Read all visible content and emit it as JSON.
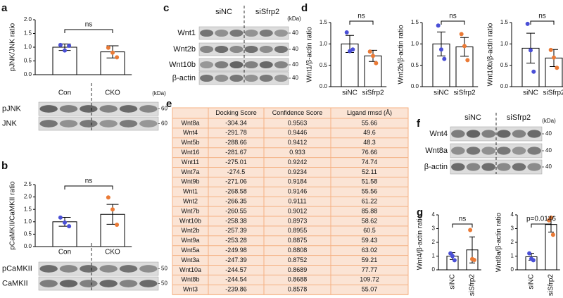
{
  "panel_labels": [
    "a",
    "b",
    "c",
    "d",
    "e",
    "f",
    "g"
  ],
  "chart_data": [
    {
      "type": "bar",
      "y_label": "pJNK/JNK ratio",
      "categories": [
        "Con",
        "CKO"
      ],
      "values": [
        1.0,
        0.83
      ],
      "errors": [
        0.12,
        0.22
      ],
      "points": [
        [
          1.08,
          0.88,
          1.05
        ],
        [
          0.98,
          0.8,
          0.63
        ]
      ],
      "colors": [
        "#4a4fd6",
        "#ea7a36"
      ],
      "annotation": "ns",
      "ylim": [
        0,
        2.0
      ],
      "yticks": [
        {
          "value": 0,
          "label": "0.0"
        },
        {
          "value": 0.5,
          "label": "0.5"
        },
        {
          "value": 1.0,
          "label": "1.0"
        },
        {
          "value": 1.5,
          "label": "1.5"
        },
        {
          "value": 2.0,
          "label": "2.0"
        }
      ]
    },
    {
      "type": "bar",
      "y_label": "pCaMKII/CaMKII ratio",
      "categories": [
        "Con",
        "CKO"
      ],
      "values": [
        1.0,
        1.3
      ],
      "errors": [
        0.18,
        0.4
      ],
      "points": [
        [
          1.17,
          0.97,
          0.82
        ],
        [
          1.98,
          1.5,
          0.88
        ]
      ],
      "colors": [
        "#4a4fd6",
        "#ea7a36"
      ],
      "annotation": "ns",
      "ylim": [
        0,
        2.5
      ],
      "yticks": [
        {
          "value": 0,
          "label": "0.0"
        },
        {
          "value": 0.5,
          "label": "0.5"
        },
        {
          "value": 1.0,
          "label": "1.0"
        },
        {
          "value": 1.5,
          "label": "1.5"
        },
        {
          "value": 2.0,
          "label": "2.0"
        },
        {
          "value": 2.5,
          "label": "2.5"
        }
      ]
    },
    {
      "type": "bar",
      "y_label": "Wnt1/β-actin ratio",
      "categories": [
        "siNC",
        "siSfrp2"
      ],
      "values": [
        1.0,
        0.72
      ],
      "errors": [
        0.2,
        0.13
      ],
      "points": [
        [
          1.27,
          0.83,
          0.87
        ],
        [
          0.82,
          0.72,
          0.55
        ]
      ],
      "colors": [
        "#4a4fd6",
        "#ea7a36"
      ],
      "annotation": "ns",
      "ylim": [
        0,
        1.5
      ],
      "yticks": [
        {
          "value": 0,
          "label": "0.0"
        },
        {
          "value": 0.5,
          "label": "0.5"
        },
        {
          "value": 1.0,
          "label": "1.0"
        },
        {
          "value": 1.5,
          "label": "1.5"
        }
      ]
    },
    {
      "type": "bar",
      "y_label": "Wnt2b/β-actin ratio",
      "categories": [
        "siNC",
        "siSfrp2"
      ],
      "values": [
        1.0,
        0.93
      ],
      "errors": [
        0.28,
        0.22
      ],
      "points": [
        [
          1.43,
          0.87,
          0.65
        ],
        [
          1.23,
          0.95,
          0.62
        ]
      ],
      "colors": [
        "#4a4fd6",
        "#ea7a36"
      ],
      "annotation": "ns",
      "ylim": [
        0,
        1.5
      ],
      "yticks": [
        {
          "value": 0,
          "label": "0.0"
        },
        {
          "value": 0.5,
          "label": "0.5"
        },
        {
          "value": 1.0,
          "label": "1.0"
        },
        {
          "value": 1.5,
          "label": "1.5"
        }
      ]
    },
    {
      "type": "bar",
      "y_label": "Wnt10b/β-actin ratio",
      "categories": [
        "siNC",
        "siSfrp2"
      ],
      "values": [
        0.9,
        0.67
      ],
      "errors": [
        0.35,
        0.2
      ],
      "points": [
        [
          1.47,
          0.85,
          0.35
        ],
        [
          0.86,
          0.68,
          0.44
        ]
      ],
      "colors": [
        "#4a4fd6",
        "#ea7a36"
      ],
      "annotation": "ns",
      "ylim": [
        0,
        1.5
      ],
      "yticks": [
        {
          "value": 0,
          "label": "0.0"
        },
        {
          "value": 0.5,
          "label": "0.5"
        },
        {
          "value": 1.0,
          "label": "1.0"
        },
        {
          "value": 1.5,
          "label": "1.5"
        }
      ]
    },
    {
      "type": "bar",
      "y_label": "Wnt4/β-actin ratio",
      "categories": [
        "siNC",
        "siSfrp2"
      ],
      "values": [
        1.0,
        1.45
      ],
      "errors": [
        0.25,
        0.95
      ],
      "points": [
        [
          1.2,
          1.0,
          0.7
        ],
        [
          2.9,
          0.78,
          0.72
        ]
      ],
      "colors": [
        "#4a4fd6",
        "#ea7a36"
      ],
      "annotation": "ns",
      "ylim": [
        0,
        4
      ],
      "yticks": [
        0,
        1,
        2,
        3,
        4
      ]
    },
    {
      "type": "bar",
      "y_label": "Wnt8a/β-actin ratio",
      "categories": [
        "siNC",
        "siSfrp2"
      ],
      "values": [
        0.95,
        3.3
      ],
      "errors": [
        0.25,
        0.55
      ],
      "points": [
        [
          1.2,
          0.8,
          0.7
        ],
        [
          3.6,
          3.8,
          2.55
        ]
      ],
      "colors": [
        "#4a4fd6",
        "#ea7a36"
      ],
      "annotation": "p=0.0146",
      "ylim": [
        0,
        4
      ],
      "yticks": [
        0,
        1,
        2,
        3,
        4
      ]
    }
  ],
  "blots": [
    {
      "kda_unit": "(kDa)",
      "rows": [
        {
          "label": "pJNK",
          "kda": 60
        },
        {
          "label": "JNK",
          "kda": 60
        }
      ]
    },
    {
      "rows": [
        {
          "label": "pCaMKII",
          "kda": 50
        },
        {
          "label": "CaMKII",
          "kda": 50
        }
      ]
    },
    {
      "groups": [
        "siNC",
        "siSfrp2"
      ],
      "kda_unit": "(kDa)",
      "rows": [
        {
          "label": "Wnt1",
          "kda": 40
        },
        {
          "label": "Wnt2b",
          "kda": 40
        },
        {
          "label": "Wnt10b",
          "kda": 40
        },
        {
          "label": "β-actin",
          "kda": 40
        }
      ]
    },
    {
      "groups": [
        "siNC",
        "siSfrp2"
      ],
      "kda_unit": "(kDa)",
      "rows": [
        {
          "label": "Wnt4",
          "kda": 40
        },
        {
          "label": "Wnt8a",
          "kda": 40
        },
        {
          "label": "β-actin",
          "kda": 40
        }
      ]
    }
  ],
  "table": {
    "header": [
      "Docking Score",
      "Confidence Score",
      "Ligand rmsd (Å)"
    ],
    "rows": [
      [
        "Wnt8a",
        -304.34,
        0.9563,
        55.66
      ],
      [
        "Wnt4",
        -291.78,
        0.9446,
        49.6
      ],
      [
        "Wnt5b",
        -288.66,
        0.9412,
        48.3
      ],
      [
        "Wnt16",
        -281.67,
        0.933,
        76.66
      ],
      [
        "Wnt11",
        -275.01,
        0.9242,
        74.74
      ],
      [
        "Wnt7a",
        -274.5,
        0.9234,
        52.11
      ],
      [
        "Wnt9b",
        -271.06,
        0.9184,
        51.58
      ],
      [
        "Wnt1",
        -268.58,
        0.9146,
        55.56
      ],
      [
        "Wnt2",
        -266.35,
        0.9111,
        61.22
      ],
      [
        "Wnt7b",
        -260.55,
        0.9012,
        85.88
      ],
      [
        "Wnt10b",
        -258.38,
        0.8973,
        58.62
      ],
      [
        "Wnt2b",
        -257.39,
        0.8955,
        60.5
      ],
      [
        "Wnt9a",
        -253.28,
        0.8875,
        59.43
      ],
      [
        "Wnt5a",
        -249.98,
        0.8808,
        63.02
      ],
      [
        "Wnt3a",
        -247.39,
        0.8752,
        59.21
      ],
      [
        "Wnt10a",
        -244.57,
        0.8689,
        77.77
      ],
      [
        "Wnt8b",
        -244.54,
        0.8688,
        109.72
      ],
      [
        "Wnt3",
        -239.86,
        0.8578,
        55.07
      ]
    ]
  }
}
